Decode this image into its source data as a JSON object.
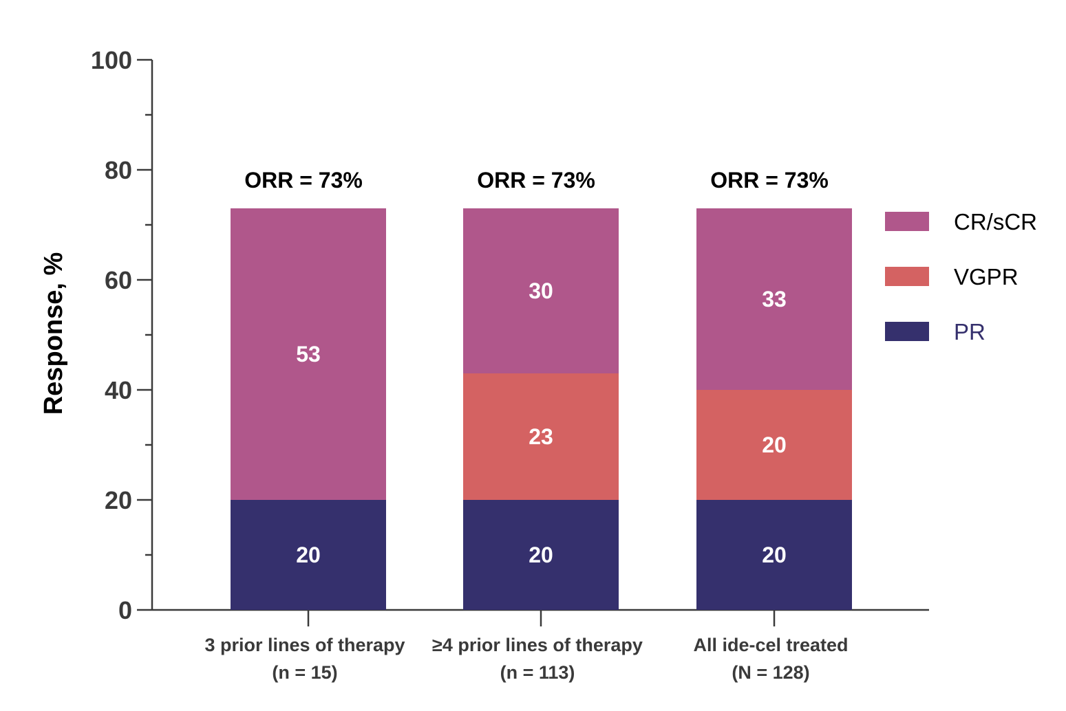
{
  "chart_data": {
    "type": "stacked-bar",
    "ylabel": "Response, %",
    "ylim": [
      0,
      100
    ],
    "yticks": [
      "0",
      "20",
      "40",
      "60",
      "80",
      "100"
    ],
    "yticks_values": [
      0,
      20,
      40,
      60,
      80,
      100
    ],
    "categories": [
      {
        "line1": "3 prior lines of therapy",
        "line2": "(n = 15)"
      },
      {
        "line1": "≥4 prior lines of therapy",
        "line2": "(n = 113)"
      },
      {
        "line1": "All ide-cel treated",
        "line2": "(N = 128)"
      }
    ],
    "totals": [
      "ORR = 73%",
      "ORR = 73%",
      "ORR = 73%"
    ],
    "series": [
      {
        "name": "PR",
        "color": "#35306d",
        "legend_text_color": "#35306d",
        "values": [
          20,
          20,
          20
        ],
        "labels": [
          "20",
          "20",
          "20"
        ]
      },
      {
        "name": "VGPR",
        "color": "#d46262",
        "legend_text_color": "#000000",
        "values": [
          0,
          23,
          20
        ],
        "labels": [
          "",
          "23",
          "20"
        ]
      },
      {
        "name": "CR/sCR",
        "color": "#b0578b",
        "legend_text_color": "#000000",
        "values": [
          53,
          30,
          33
        ],
        "labels": [
          "53",
          "30",
          "33"
        ]
      }
    ],
    "legend_order": [
      "CR/sCR",
      "VGPR",
      "PR"
    ],
    "legend_position": "right"
  }
}
